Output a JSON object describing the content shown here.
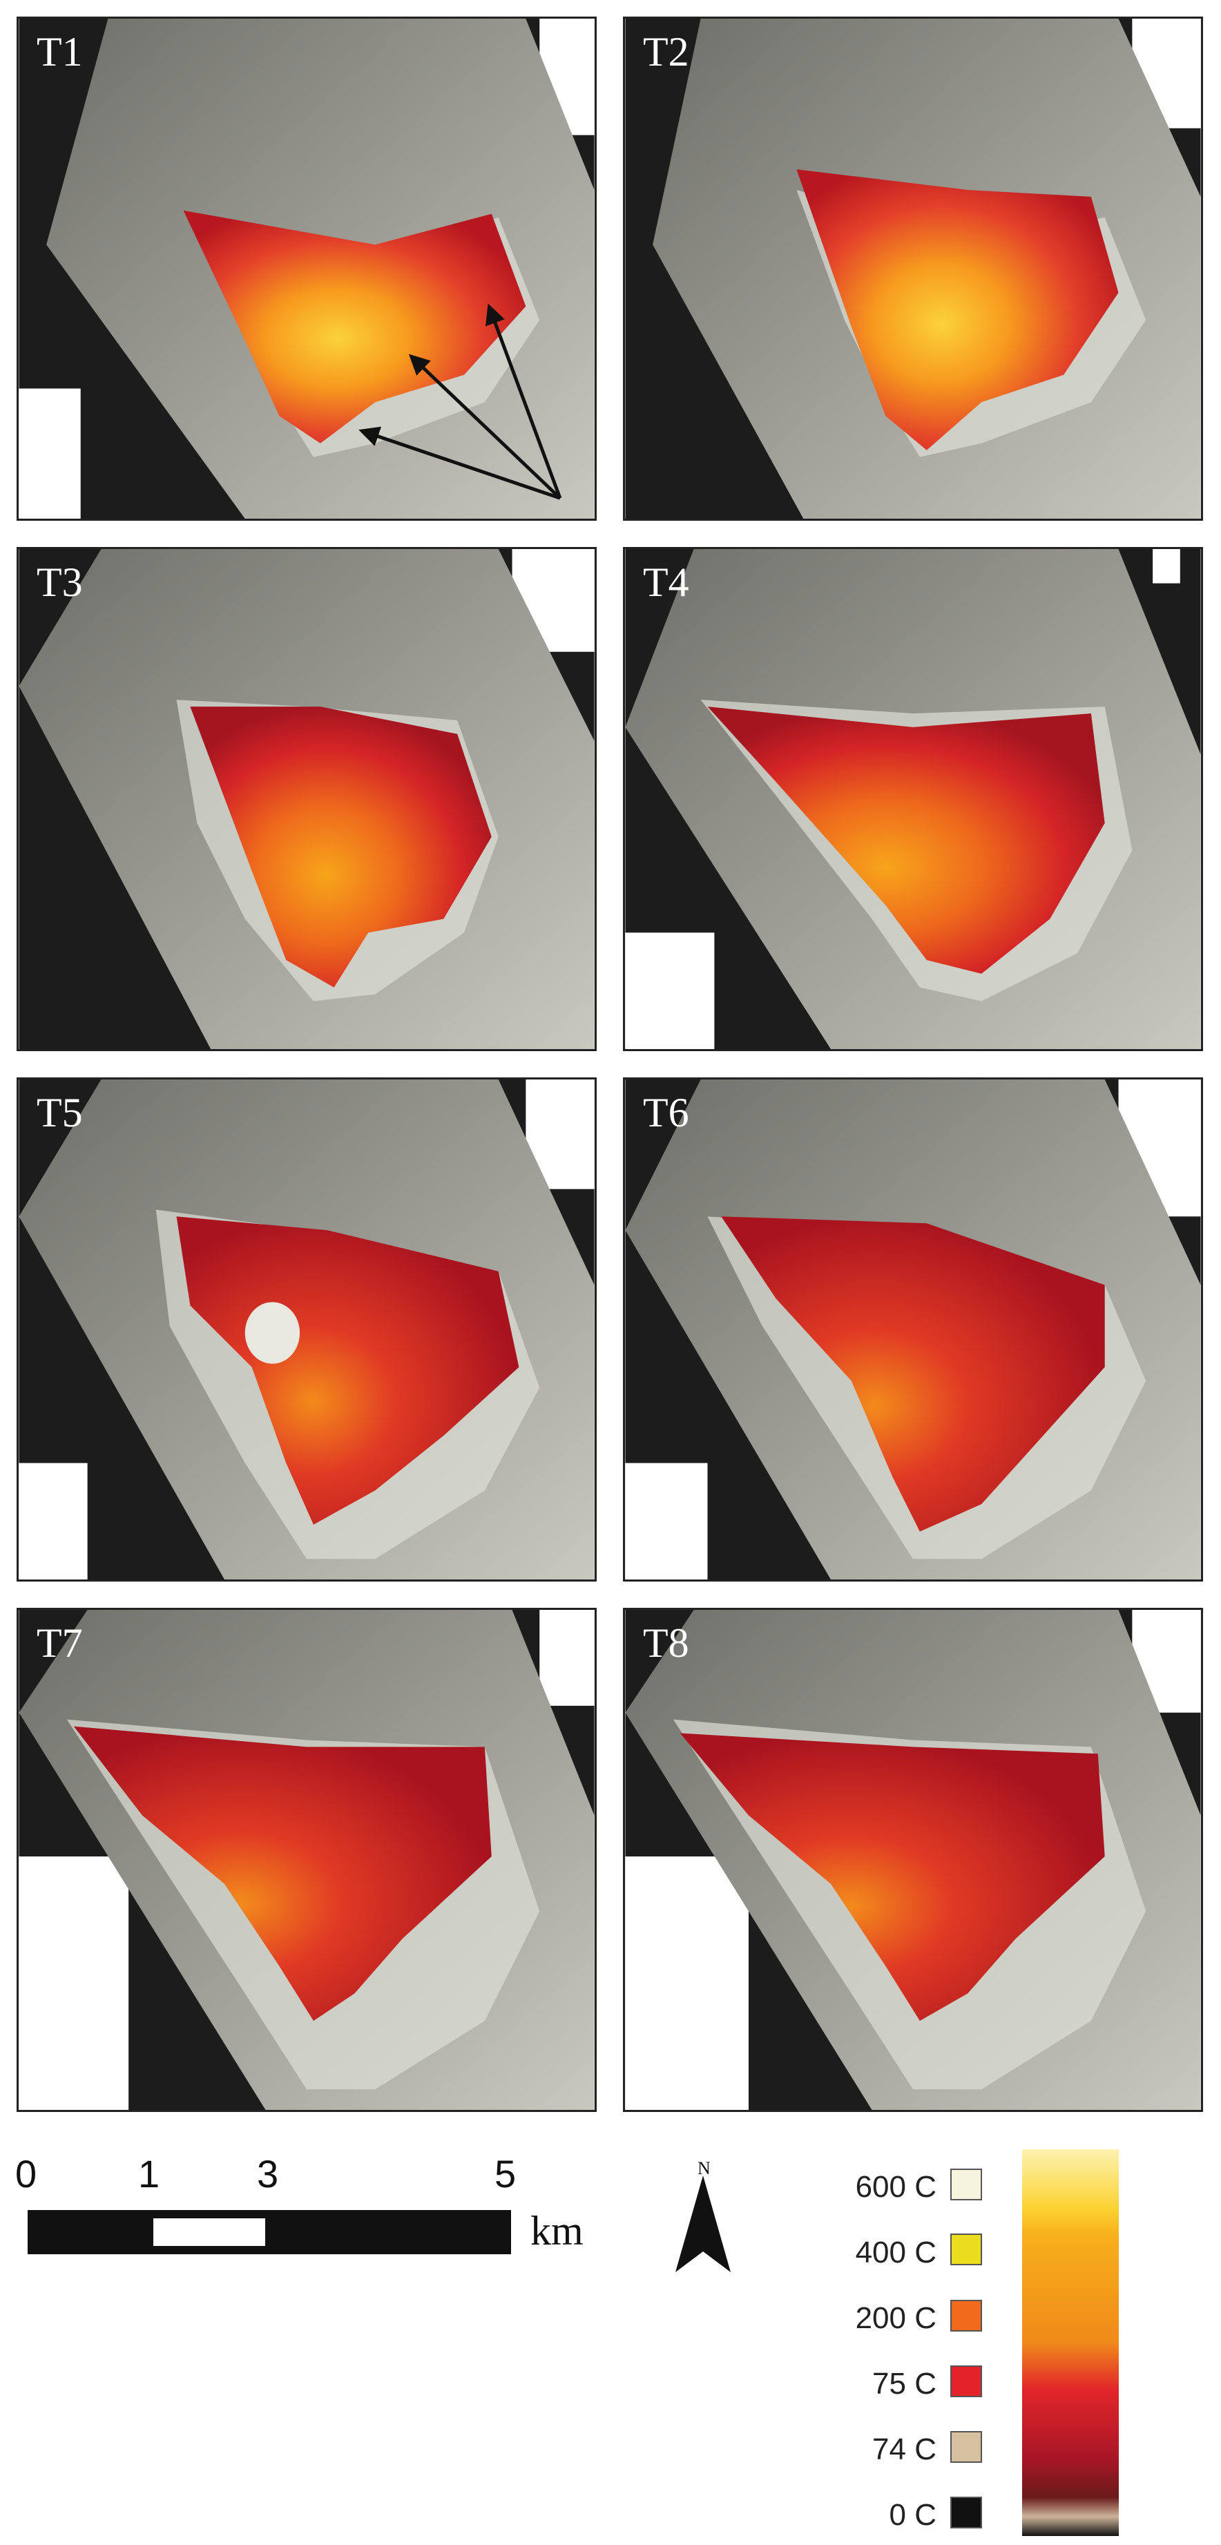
{
  "panels": [
    {
      "label": "T1"
    },
    {
      "label": "T2"
    },
    {
      "label": "T3"
    },
    {
      "label": "T4"
    },
    {
      "label": "T5"
    },
    {
      "label": "T6"
    },
    {
      "label": "T7"
    },
    {
      "label": "T8"
    }
  ],
  "scale_bar": {
    "ticks": [
      "0",
      "1",
      "3",
      "5"
    ],
    "unit": "km"
  },
  "north_arrow": {
    "label": "N"
  },
  "legend": {
    "items": [
      {
        "label": "600 C",
        "color": "#f6f3df"
      },
      {
        "label": "400 C",
        "color": "#ecdc1e"
      },
      {
        "label": "200 C",
        "color": "#f26a1b"
      },
      {
        "label": "75 C",
        "color": "#e3222a"
      },
      {
        "label": "74 C",
        "color": "#d6c0a0"
      },
      {
        "label": "0 C",
        "color": "#111111"
      }
    ],
    "colorbar_colors": [
      "#fdf3b0",
      "#fbd02c",
      "#f7a51b",
      "#f08a1a",
      "#e2262a",
      "#a81626",
      "#3b1e12"
    ]
  }
}
